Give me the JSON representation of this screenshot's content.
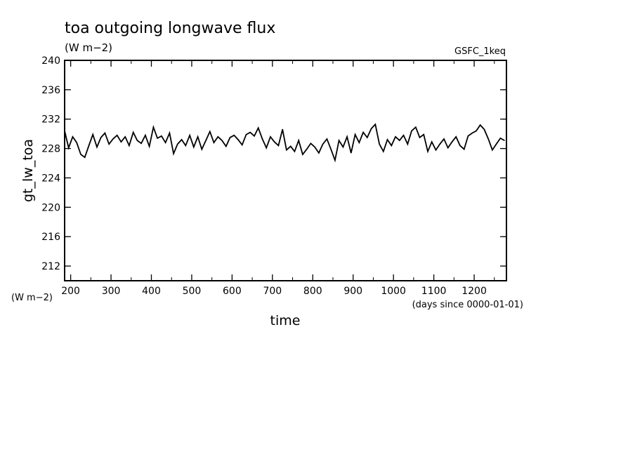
{
  "chart_data": {
    "type": "line",
    "title": "toa outgoing longwave flux",
    "subtitle": "(W m−2)",
    "corner_label": "GSFC_1keq",
    "ylabel": "gt_lw_toa",
    "y_units": "(W m−2)",
    "xlabel": "time",
    "x_units": "(days since 0000-01-01)",
    "xlim": [
      185,
      1280
    ],
    "ylim": [
      210,
      240
    ],
    "x_ticks": [
      200,
      300,
      400,
      500,
      600,
      700,
      800,
      900,
      1000,
      1100,
      1200
    ],
    "y_ticks": [
      212,
      216,
      220,
      224,
      228,
      232,
      236,
      240
    ],
    "grid": false,
    "series": [
      {
        "color": "#000000",
        "x": [
          185,
          195,
          205,
          215,
          225,
          235,
          245,
          255,
          265,
          275,
          285,
          295,
          305,
          315,
          325,
          335,
          345,
          355,
          365,
          375,
          385,
          395,
          405,
          415,
          425,
          435,
          445,
          455,
          465,
          475,
          485,
          495,
          505,
          515,
          525,
          535,
          545,
          555,
          565,
          575,
          585,
          595,
          605,
          615,
          625,
          635,
          645,
          655,
          665,
          675,
          685,
          695,
          705,
          715,
          725,
          735,
          745,
          755,
          765,
          775,
          785,
          795,
          805,
          815,
          825,
          835,
          845,
          855,
          865,
          875,
          885,
          895,
          905,
          915,
          925,
          935,
          945,
          955,
          965,
          975,
          985,
          995,
          1005,
          1015,
          1025,
          1035,
          1045,
          1055,
          1065,
          1075,
          1085,
          1095,
          1105,
          1115,
          1125,
          1135,
          1145,
          1155,
          1165,
          1175,
          1185,
          1195,
          1205,
          1215,
          1225,
          1235,
          1245,
          1255,
          1265,
          1275
        ],
        "y": [
          230.4,
          228.1,
          229.6,
          228.8,
          227.2,
          226.8,
          228.4,
          229.9,
          228.2,
          229.5,
          230.1,
          228.6,
          229.3,
          229.8,
          228.9,
          229.6,
          228.4,
          230.2,
          229.1,
          228.7,
          229.8,
          228.3,
          230.9,
          229.4,
          229.7,
          228.8,
          230.1,
          227.3,
          228.6,
          229.2,
          228.4,
          229.8,
          228.2,
          229.6,
          227.9,
          229.1,
          230.3,
          228.8,
          229.6,
          229.1,
          228.3,
          229.5,
          229.8,
          229.2,
          228.5,
          229.9,
          230.2,
          229.7,
          230.8,
          229.3,
          228.1,
          229.6,
          228.9,
          228.4,
          230.6,
          227.8,
          228.3,
          227.6,
          229.1,
          227.2,
          227.9,
          228.7,
          228.2,
          227.4,
          228.6,
          229.3,
          227.9,
          226.4,
          229.1,
          228.2,
          229.6,
          227.4,
          229.9,
          228.8,
          230.2,
          229.5,
          230.7,
          231.3,
          228.6,
          227.6,
          229.2,
          228.4,
          229.6,
          229.1,
          229.8,
          228.6,
          230.4,
          230.9,
          229.5,
          229.9,
          227.6,
          228.9,
          227.8,
          228.6,
          229.3,
          228.1,
          228.9,
          229.6,
          228.4,
          227.9,
          229.7,
          230.1,
          230.4,
          231.2,
          230.6,
          229.3,
          227.8,
          228.6,
          229.4,
          229.1
        ]
      }
    ]
  }
}
